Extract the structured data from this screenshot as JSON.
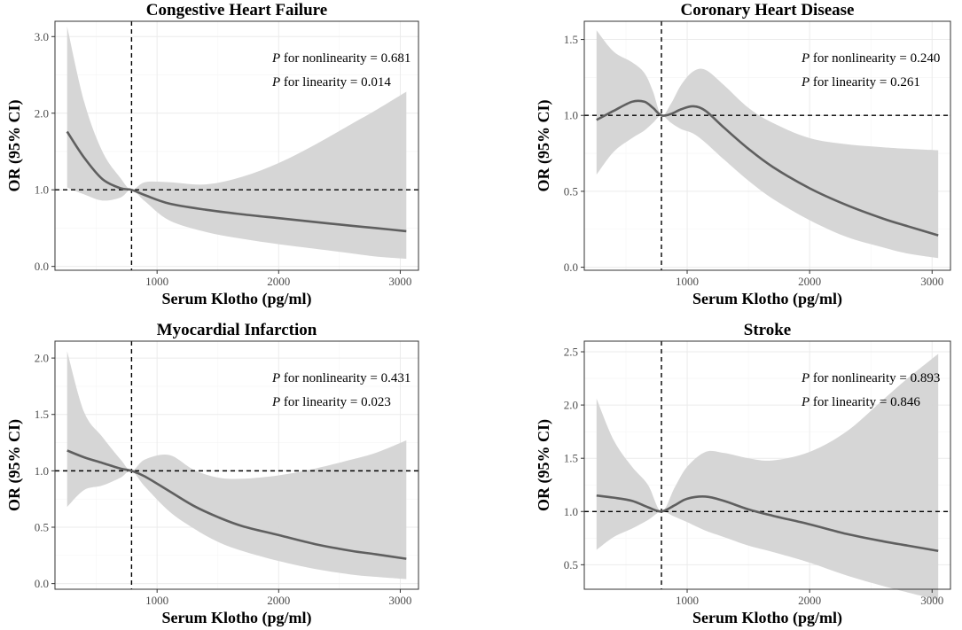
{
  "figure": {
    "x_axis_label": "Serum Klotho (pg/ml)",
    "y_axis_label": "OR (95% CI)"
  },
  "chart_data": [
    {
      "type": "line",
      "id": "chf",
      "title": "Congestive Heart Failure",
      "xlabel": "Serum Klotho (pg/ml)",
      "ylabel": "OR (95% CI)",
      "xlim": [
        160,
        3150
      ],
      "ylim": [
        -0.05,
        3.2
      ],
      "xticks": [
        1000,
        2000,
        3000
      ],
      "yticks": [
        0,
        1,
        2,
        3
      ],
      "ytick_labels": [
        "0.0",
        "1.0",
        "2.0",
        "3.0"
      ],
      "ref_x": 790,
      "ref_y": 1.0,
      "annotations": [
        {
          "prefix": "P",
          "text": " for nonlinearity = 0.681"
        },
        {
          "prefix": "P",
          "text": " for linearity = 0.014"
        }
      ],
      "x": [
        260,
        400,
        550,
        700,
        790,
        900,
        1100,
        1400,
        1700,
        2000,
        2300,
        2600,
        2800,
        3050
      ],
      "y": [
        1.76,
        1.42,
        1.14,
        1.02,
        1.0,
        0.93,
        0.82,
        0.74,
        0.68,
        0.63,
        0.58,
        0.53,
        0.5,
        0.46
      ],
      "lower": [
        1.03,
        0.94,
        0.86,
        0.9,
        1.0,
        0.85,
        0.6,
        0.45,
        0.36,
        0.29,
        0.23,
        0.17,
        0.13,
        0.1
      ],
      "upper": [
        3.13,
        2.15,
        1.5,
        1.15,
        1.0,
        1.1,
        1.1,
        1.07,
        1.17,
        1.35,
        1.59,
        1.86,
        2.04,
        2.28
      ]
    },
    {
      "type": "line",
      "id": "chd",
      "title": "Coronary Heart Disease",
      "xlabel": "Serum Klotho (pg/ml)",
      "ylabel": "OR (95% CI)",
      "xlim": [
        160,
        3150
      ],
      "ylim": [
        -0.02,
        1.62
      ],
      "xticks": [
        1000,
        2000,
        3000
      ],
      "yticks": [
        0,
        0.5,
        1,
        1.5
      ],
      "ytick_labels": [
        "0.0",
        "0.5",
        "1.0",
        "1.5"
      ],
      "ref_x": 790,
      "ref_y": 1.0,
      "annotations": [
        {
          "prefix": "P",
          "text": " for nonlinearity = 0.240"
        },
        {
          "prefix": "P",
          "text": " for linearity = 0.261"
        }
      ],
      "x": [
        260,
        400,
        550,
        650,
        720,
        790,
        870,
        950,
        1050,
        1150,
        1300,
        1500,
        1700,
        2000,
        2300,
        2600,
        2800,
        3050
      ],
      "y": [
        0.97,
        1.03,
        1.09,
        1.09,
        1.05,
        1.0,
        1.01,
        1.04,
        1.06,
        1.03,
        0.92,
        0.78,
        0.66,
        0.52,
        0.41,
        0.32,
        0.27,
        0.21
      ],
      "lower": [
        0.61,
        0.76,
        0.85,
        0.9,
        0.95,
        1.0,
        0.95,
        0.91,
        0.88,
        0.82,
        0.71,
        0.57,
        0.45,
        0.31,
        0.2,
        0.13,
        0.09,
        0.06
      ],
      "upper": [
        1.56,
        1.42,
        1.35,
        1.28,
        1.16,
        1.0,
        1.08,
        1.2,
        1.29,
        1.3,
        1.2,
        1.05,
        0.95,
        0.85,
        0.81,
        0.79,
        0.78,
        0.77
      ]
    },
    {
      "type": "line",
      "id": "mi",
      "title": "Myocardial Infarction",
      "xlabel": "Serum Klotho (pg/ml)",
      "ylabel": "OR (95% CI)",
      "xlim": [
        160,
        3150
      ],
      "ylim": [
        -0.05,
        2.15
      ],
      "xticks": [
        1000,
        2000,
        3000
      ],
      "yticks": [
        0,
        0.5,
        1,
        1.5,
        2
      ],
      "ytick_labels": [
        "0.0",
        "0.5",
        "1.0",
        "1.5",
        "2.0"
      ],
      "ref_x": 790,
      "ref_y": 1.0,
      "annotations": [
        {
          "prefix": "P",
          "text": " for nonlinearity = 0.431"
        },
        {
          "prefix": "P",
          "text": " for linearity = 0.023"
        }
      ],
      "x": [
        260,
        400,
        550,
        700,
        790,
        900,
        1100,
        1300,
        1500,
        1700,
        2000,
        2300,
        2600,
        2800,
        3050
      ],
      "y": [
        1.18,
        1.12,
        1.07,
        1.02,
        1.0,
        0.95,
        0.82,
        0.69,
        0.59,
        0.51,
        0.43,
        0.35,
        0.29,
        0.26,
        0.22
      ],
      "lower": [
        0.68,
        0.83,
        0.87,
        0.94,
        1.0,
        0.86,
        0.64,
        0.49,
        0.37,
        0.29,
        0.2,
        0.13,
        0.08,
        0.06,
        0.04
      ],
      "upper": [
        2.06,
        1.52,
        1.3,
        1.1,
        1.0,
        1.1,
        1.14,
        1.01,
        0.94,
        0.93,
        0.96,
        1.02,
        1.1,
        1.16,
        1.27
      ]
    },
    {
      "type": "line",
      "id": "stroke",
      "title": "Stroke",
      "xlabel": "Serum Klotho (pg/ml)",
      "ylabel": "OR (95% CI)",
      "xlim": [
        160,
        3150
      ],
      "ylim": [
        0.27,
        2.6
      ],
      "xticks": [
        1000,
        2000,
        3000
      ],
      "yticks": [
        0.5,
        1,
        1.5,
        2,
        2.5
      ],
      "ytick_labels": [
        "0.5",
        "1.0",
        "1.5",
        "2.0",
        "2.5"
      ],
      "ref_x": 790,
      "ref_y": 1.0,
      "annotations": [
        {
          "prefix": "P",
          "text": " for nonlinearity = 0.893"
        },
        {
          "prefix": "P",
          "text": " for linearity = 0.846"
        }
      ],
      "x": [
        260,
        400,
        550,
        680,
        790,
        900,
        1000,
        1150,
        1300,
        1500,
        1700,
        2000,
        2300,
        2600,
        2800,
        3050
      ],
      "y": [
        1.15,
        1.13,
        1.1,
        1.04,
        1.0,
        1.06,
        1.12,
        1.14,
        1.1,
        1.02,
        0.96,
        0.88,
        0.79,
        0.72,
        0.68,
        0.63
      ],
      "lower": [
        0.64,
        0.76,
        0.84,
        0.92,
        1.0,
        0.95,
        0.9,
        0.82,
        0.76,
        0.68,
        0.62,
        0.52,
        0.4,
        0.3,
        0.24,
        0.17
      ],
      "upper": [
        2.06,
        1.67,
        1.42,
        1.25,
        1.0,
        1.23,
        1.42,
        1.56,
        1.55,
        1.5,
        1.48,
        1.56,
        1.75,
        2.05,
        2.25,
        2.48
      ]
    }
  ]
}
